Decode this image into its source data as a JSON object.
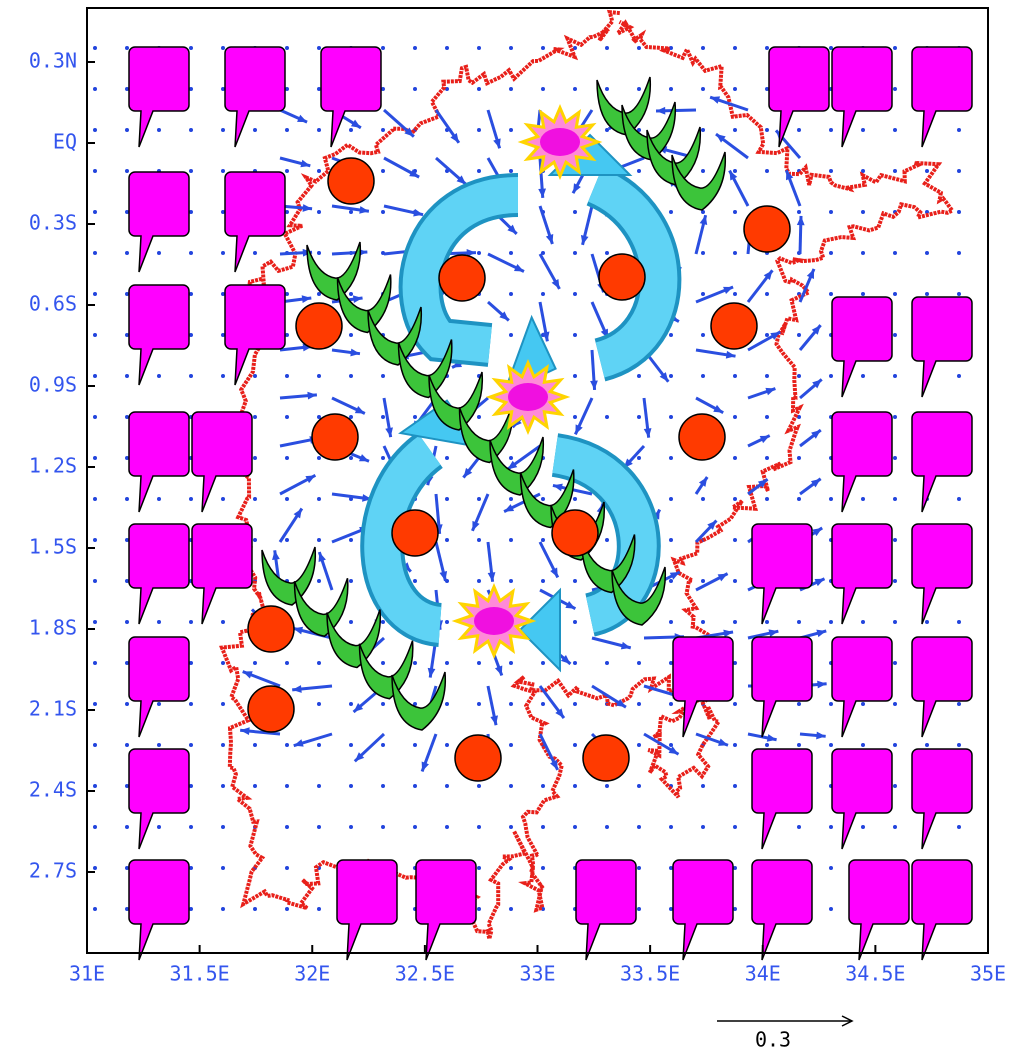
{
  "chart_data": {
    "type": "vector-map",
    "xlim": [
      31,
      35
    ],
    "ylim": [
      -3,
      0.5
    ],
    "xticks": [
      {
        "value": 31,
        "label": "31E"
      },
      {
        "value": 31.5,
        "label": "31.5E"
      },
      {
        "value": 32,
        "label": "32E"
      },
      {
        "value": 32.5,
        "label": "32.5E"
      },
      {
        "value": 33,
        "label": "33E"
      },
      {
        "value": 33.5,
        "label": "33.5E"
      },
      {
        "value": 34,
        "label": "34E"
      },
      {
        "value": 34.5,
        "label": "34.5E"
      },
      {
        "value": 35,
        "label": "35E"
      }
    ],
    "yticks": [
      {
        "value": 0.3,
        "label": "0.3N"
      },
      {
        "value": 0,
        "label": "EQ"
      },
      {
        "value": -0.3,
        "label": "0.3S"
      },
      {
        "value": -0.6,
        "label": "0.6S"
      },
      {
        "value": -0.9,
        "label": "0.9S"
      },
      {
        "value": -1.2,
        "label": "1.2S"
      },
      {
        "value": -1.5,
        "label": "1.5S"
      },
      {
        "value": -1.8,
        "label": "1.8S"
      },
      {
        "value": -2.1,
        "label": "2.1S"
      },
      {
        "value": -2.4,
        "label": "2.4S"
      },
      {
        "value": -2.7,
        "label": "2.7S"
      }
    ],
    "reference_vector": 0.3
  }
}
